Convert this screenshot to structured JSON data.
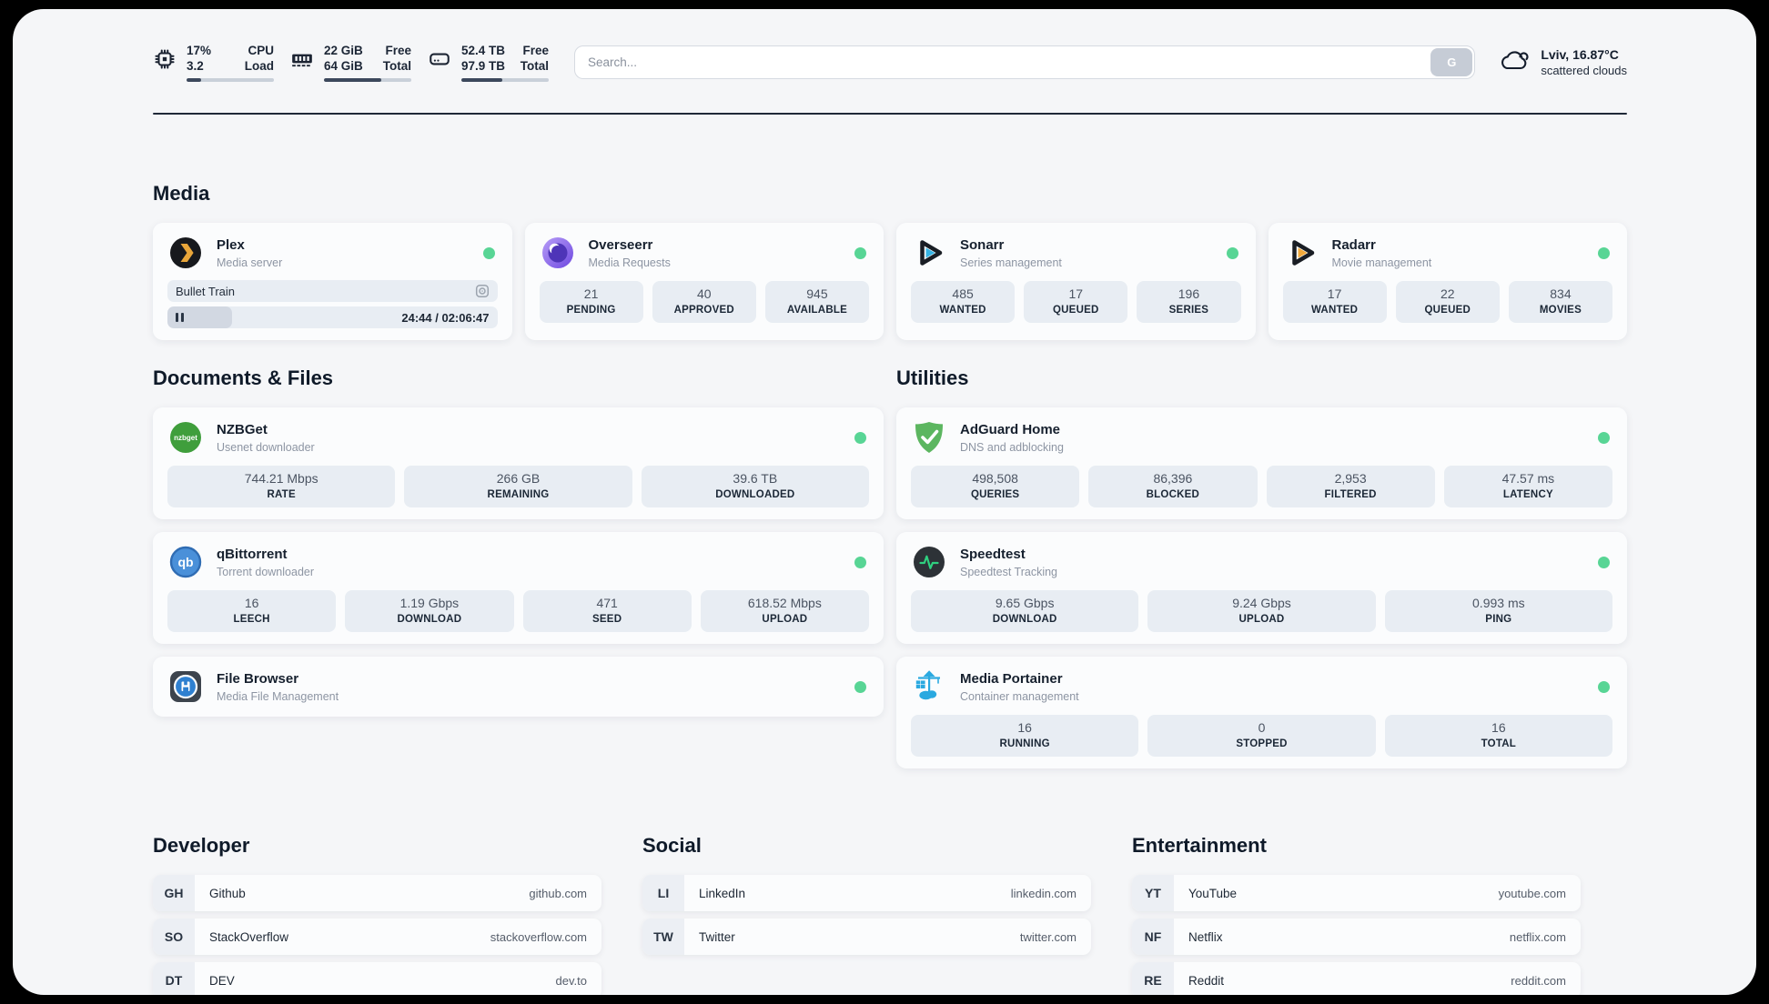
{
  "colors": {
    "status_online": "#58d595",
    "accent_dark": "#1f2838",
    "page_bg": "#f5f6f8"
  },
  "header": {
    "system": [
      {
        "icon": "cpu-icon",
        "values": [
          "17%",
          "3.2"
        ],
        "labels": [
          "CPU",
          "Load"
        ],
        "progress": 17
      },
      {
        "icon": "ram-icon",
        "values": [
          "22 GiB",
          "64 GiB"
        ],
        "labels": [
          "Free",
          "Total"
        ],
        "progress": 66
      },
      {
        "icon": "disk-icon",
        "values": [
          "52.4 TB",
          "97.9 TB"
        ],
        "labels": [
          "Free",
          "Total"
        ],
        "progress": 47
      }
    ],
    "search": {
      "placeholder": "Search...",
      "button_label": "G"
    },
    "weather": {
      "summary": "Lviv, 16.87°C",
      "condition": "scattered clouds"
    }
  },
  "sections": {
    "media": {
      "title": "Media",
      "plex": {
        "name": "Plex",
        "subtitle": "Media server",
        "now_playing": "Bullet Train",
        "time": "24:44 / 02:06:47",
        "progress": 19.5
      },
      "overseerr": {
        "name": "Overseerr",
        "subtitle": "Media Requests",
        "stats": [
          {
            "value": "21",
            "label": "PENDING"
          },
          {
            "value": "40",
            "label": "APPROVED"
          },
          {
            "value": "945",
            "label": "AVAILABLE"
          }
        ]
      },
      "sonarr": {
        "name": "Sonarr",
        "subtitle": "Series management",
        "stats": [
          {
            "value": "485",
            "label": "WANTED"
          },
          {
            "value": "17",
            "label": "QUEUED"
          },
          {
            "value": "196",
            "label": "SERIES"
          }
        ]
      },
      "radarr": {
        "name": "Radarr",
        "subtitle": "Movie management",
        "stats": [
          {
            "value": "17",
            "label": "WANTED"
          },
          {
            "value": "22",
            "label": "QUEUED"
          },
          {
            "value": "834",
            "label": "MOVIES"
          }
        ]
      }
    },
    "documents": {
      "title": "Documents & Files",
      "nzbget": {
        "name": "NZBGet",
        "subtitle": "Usenet downloader",
        "stats": [
          {
            "value": "744.21 Mbps",
            "label": "RATE"
          },
          {
            "value": "266 GB",
            "label": "REMAINING"
          },
          {
            "value": "39.6 TB",
            "label": "DOWNLOADED"
          }
        ]
      },
      "qbittorrent": {
        "name": "qBittorrent",
        "subtitle": "Torrent downloader",
        "stats": [
          {
            "value": "16",
            "label": "LEECH"
          },
          {
            "value": "1.19 Gbps",
            "label": "DOWNLOAD"
          },
          {
            "value": "471",
            "label": "SEED"
          },
          {
            "value": "618.52 Mbps",
            "label": "UPLOAD"
          }
        ]
      },
      "filebrowser": {
        "name": "File Browser",
        "subtitle": "Media File Management"
      }
    },
    "utilities": {
      "title": "Utilities",
      "adguard": {
        "name": "AdGuard Home",
        "subtitle": "DNS and adblocking",
        "stats": [
          {
            "value": "498,508",
            "label": "QUERIES"
          },
          {
            "value": "86,396",
            "label": "BLOCKED"
          },
          {
            "value": "2,953",
            "label": "FILTERED"
          },
          {
            "value": "47.57 ms",
            "label": "LATENCY"
          }
        ]
      },
      "speedtest": {
        "name": "Speedtest",
        "subtitle": "Speedtest Tracking",
        "stats": [
          {
            "value": "9.65 Gbps",
            "label": "DOWNLOAD"
          },
          {
            "value": "9.24 Gbps",
            "label": "UPLOAD"
          },
          {
            "value": "0.993 ms",
            "label": "PING"
          }
        ]
      },
      "portainer": {
        "name": "Media Portainer",
        "subtitle": "Container management",
        "stats": [
          {
            "value": "16",
            "label": "RUNNING"
          },
          {
            "value": "0",
            "label": "STOPPED"
          },
          {
            "value": "16",
            "label": "TOTAL"
          }
        ]
      }
    },
    "links": {
      "developer": {
        "title": "Developer",
        "items": [
          {
            "abbr": "GH",
            "name": "Github",
            "url": "github.com"
          },
          {
            "abbr": "SO",
            "name": "StackOverflow",
            "url": "stackoverflow.com"
          },
          {
            "abbr": "DT",
            "name": "DEV",
            "url": "dev.to"
          }
        ]
      },
      "social": {
        "title": "Social",
        "items": [
          {
            "abbr": "LI",
            "name": "LinkedIn",
            "url": "linkedin.com"
          },
          {
            "abbr": "TW",
            "name": "Twitter",
            "url": "twitter.com"
          }
        ]
      },
      "entertainment": {
        "title": "Entertainment",
        "items": [
          {
            "abbr": "YT",
            "name": "YouTube",
            "url": "youtube.com"
          },
          {
            "abbr": "NF",
            "name": "Netflix",
            "url": "netflix.com"
          },
          {
            "abbr": "RE",
            "name": "Reddit",
            "url": "reddit.com"
          }
        ]
      }
    }
  }
}
